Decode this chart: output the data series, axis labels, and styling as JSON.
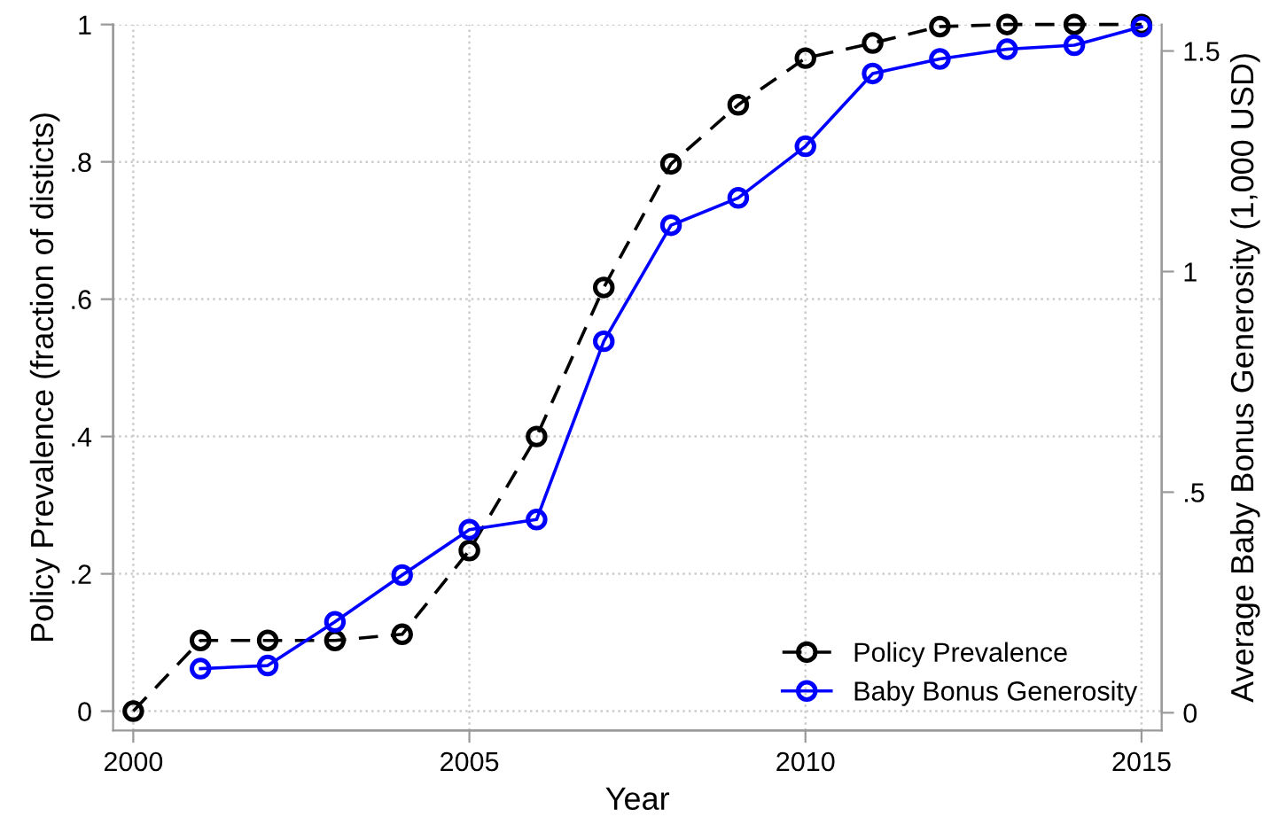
{
  "chart_data": {
    "type": "line",
    "xlabel": "Year",
    "ylabel": "Policy Prevalence (fraction of disticts)",
    "y2label": "Average Baby Bonus Generosity (1,000 USD)",
    "x": [
      2000,
      2001,
      2002,
      2003,
      2004,
      2005,
      2006,
      2007,
      2008,
      2009,
      2010,
      2011,
      2012,
      2013,
      2014,
      2015
    ],
    "series": [
      {
        "name": "Policy Prevalence",
        "color": "#000000",
        "line_style": "dashed",
        "values": [
          0,
          0.103,
          0.103,
          0.103,
          0.112,
          0.234,
          0.4,
          0.617,
          0.797,
          0.883,
          0.951,
          0.973,
          0.997,
          1.0,
          1.0,
          1.0
        ]
      },
      {
        "name": "Baby Bonus Generosity",
        "color": "#0000ff",
        "line_style": "solid",
        "axis": "y2",
        "values": [
          null,
          0.1,
          0.107,
          0.206,
          0.312,
          0.415,
          0.438,
          0.842,
          1.105,
          1.167,
          1.284,
          1.449,
          1.482,
          1.504,
          1.513,
          1.555
        ]
      }
    ],
    "marker": "circle",
    "xlim": [
      1999.7,
      2015.3
    ],
    "xticks": [
      2000,
      2005,
      2010,
      2015
    ],
    "ylim": [
      -0.028,
      1.0
    ],
    "yticks": [
      0,
      {
        "value": 0.2,
        "label": ".2"
      },
      {
        "value": 0.4,
        "label": ".4"
      },
      {
        "value": 0.6,
        "label": ".6"
      },
      {
        "value": 0.8,
        "label": ".8"
      },
      1
    ],
    "y2lim": [
      -0.04,
      1.56
    ],
    "y2ticks": [
      0,
      {
        "value": 0.5,
        "label": ".5"
      },
      1,
      1.5
    ],
    "grid": true,
    "legend": "bottom right"
  }
}
